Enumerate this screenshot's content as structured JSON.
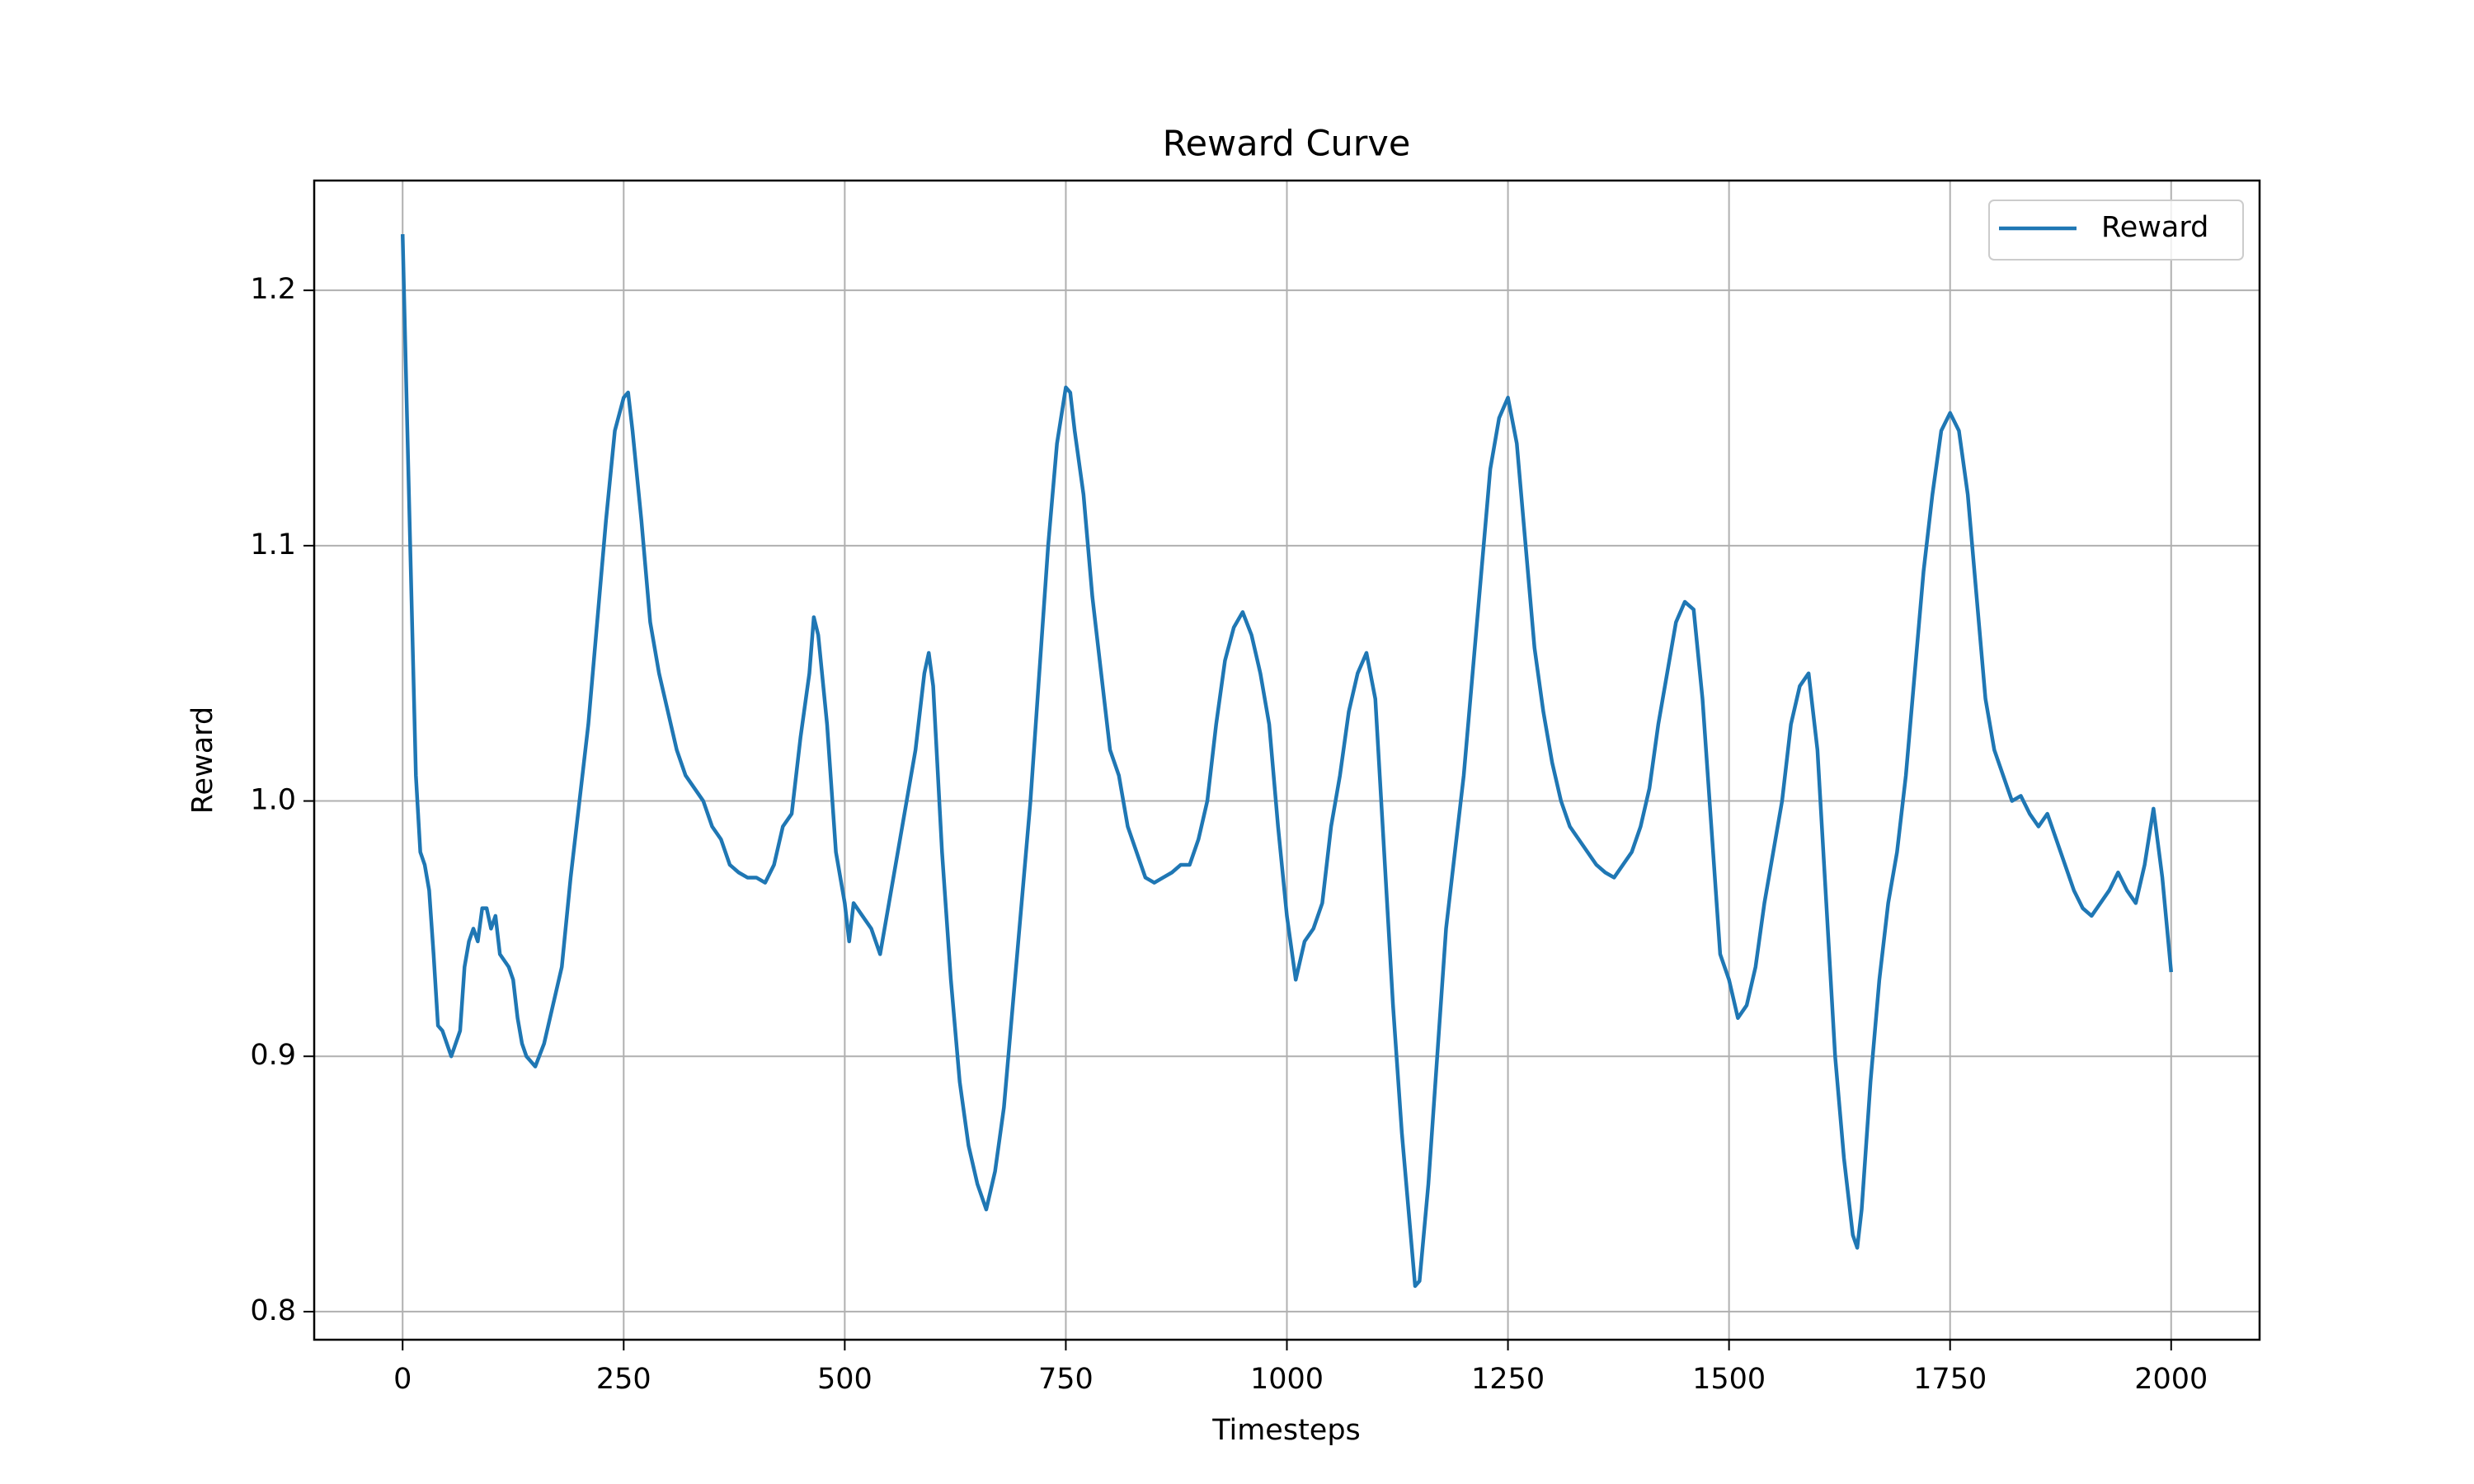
{
  "chart_data": {
    "type": "line",
    "title": "Reward Curve",
    "xlabel": "Timesteps",
    "ylabel": "Reward",
    "x": [
      0,
      5,
      10,
      15,
      20,
      25,
      30,
      35,
      40,
      45,
      50,
      55,
      60,
      65,
      70,
      75,
      80,
      85,
      90,
      95,
      100,
      105,
      110,
      120,
      125,
      130,
      135,
      140,
      145,
      150,
      160,
      170,
      180,
      190,
      200,
      210,
      220,
      230,
      240,
      250,
      255,
      260,
      270,
      280,
      290,
      300,
      310,
      320,
      330,
      340,
      350,
      360,
      370,
      380,
      390,
      400,
      410,
      420,
      430,
      440,
      450,
      460,
      465,
      470,
      480,
      490,
      500,
      505,
      510,
      520,
      530,
      540,
      550,
      560,
      570,
      580,
      590,
      595,
      600,
      610,
      620,
      630,
      640,
      650,
      660,
      670,
      680,
      690,
      700,
      710,
      720,
      730,
      740,
      750,
      755,
      760,
      770,
      780,
      790,
      800,
      810,
      820,
      830,
      840,
      850,
      860,
      870,
      880,
      890,
      900,
      910,
      920,
      930,
      940,
      950,
      960,
      970,
      980,
      990,
      1000,
      1010,
      1020,
      1030,
      1040,
      1050,
      1060,
      1070,
      1080,
      1090,
      1100,
      1110,
      1120,
      1130,
      1140,
      1145,
      1150,
      1160,
      1170,
      1180,
      1190,
      1200,
      1210,
      1220,
      1230,
      1240,
      1250,
      1260,
      1270,
      1280,
      1290,
      1300,
      1310,
      1320,
      1330,
      1340,
      1350,
      1360,
      1370,
      1380,
      1390,
      1400,
      1410,
      1420,
      1430,
      1440,
      1450,
      1460,
      1470,
      1480,
      1490,
      1500,
      1510,
      1520,
      1530,
      1540,
      1550,
      1560,
      1570,
      1580,
      1590,
      1600,
      1610,
      1620,
      1630,
      1640,
      1645,
      1650,
      1660,
      1670,
      1680,
      1690,
      1700,
      1710,
      1720,
      1730,
      1740,
      1750,
      1760,
      1770,
      1780,
      1790,
      1800,
      1810,
      1820,
      1830,
      1840,
      1850,
      1860,
      1870,
      1880,
      1890,
      1900,
      1910,
      1920,
      1930,
      1940,
      1950,
      1960,
      1970,
      1980,
      1990,
      2000
    ],
    "series": [
      {
        "name": "Reward",
        "color": "#1f77b4",
        "values": [
          1.222,
          1.15,
          1.08,
          1.01,
          0.98,
          0.975,
          0.965,
          0.94,
          0.912,
          0.91,
          0.905,
          0.9,
          0.905,
          0.91,
          0.935,
          0.945,
          0.95,
          0.945,
          0.958,
          0.958,
          0.95,
          0.955,
          0.94,
          0.935,
          0.93,
          0.915,
          0.905,
          0.9,
          0.898,
          0.896,
          0.905,
          0.92,
          0.935,
          0.97,
          1.0,
          1.03,
          1.07,
          1.11,
          1.145,
          1.158,
          1.16,
          1.145,
          1.11,
          1.07,
          1.05,
          1.035,
          1.02,
          1.01,
          1.005,
          1.0,
          0.99,
          0.985,
          0.975,
          0.972,
          0.97,
          0.97,
          0.968,
          0.975,
          0.99,
          0.995,
          1.025,
          1.05,
          1.072,
          1.065,
          1.03,
          0.98,
          0.96,
          0.945,
          0.96,
          0.955,
          0.95,
          0.94,
          0.96,
          0.98,
          1.0,
          1.02,
          1.05,
          1.058,
          1.045,
          0.98,
          0.93,
          0.89,
          0.865,
          0.85,
          0.84,
          0.855,
          0.88,
          0.92,
          0.96,
          1.0,
          1.05,
          1.1,
          1.14,
          1.162,
          1.16,
          1.145,
          1.12,
          1.08,
          1.05,
          1.02,
          1.01,
          0.99,
          0.98,
          0.97,
          0.968,
          0.97,
          0.972,
          0.975,
          0.975,
          0.985,
          1.0,
          1.03,
          1.055,
          1.068,
          1.074,
          1.065,
          1.05,
          1.03,
          0.99,
          0.955,
          0.93,
          0.945,
          0.95,
          0.96,
          0.99,
          1.01,
          1.035,
          1.05,
          1.058,
          1.04,
          0.98,
          0.92,
          0.87,
          0.83,
          0.81,
          0.812,
          0.85,
          0.9,
          0.95,
          0.98,
          1.01,
          1.05,
          1.09,
          1.13,
          1.15,
          1.158,
          1.14,
          1.1,
          1.06,
          1.035,
          1.015,
          1.0,
          0.99,
          0.985,
          0.98,
          0.975,
          0.972,
          0.97,
          0.975,
          0.98,
          0.99,
          1.005,
          1.03,
          1.05,
          1.07,
          1.078,
          1.075,
          1.04,
          0.99,
          0.94,
          0.93,
          0.915,
          0.92,
          0.935,
          0.96,
          0.98,
          1.0,
          1.03,
          1.045,
          1.05,
          1.02,
          0.96,
          0.9,
          0.86,
          0.83,
          0.825,
          0.84,
          0.89,
          0.93,
          0.96,
          0.98,
          1.01,
          1.05,
          1.09,
          1.12,
          1.145,
          1.152,
          1.145,
          1.12,
          1.08,
          1.04,
          1.02,
          1.01,
          1.0,
          1.002,
          0.995,
          0.99,
          0.995,
          0.985,
          0.975,
          0.965,
          0.958,
          0.955,
          0.96,
          0.965,
          0.972,
          0.965,
          0.96,
          0.975,
          0.997,
          0.97,
          0.933
        ]
      }
    ],
    "xlim": [
      -100,
      2100
    ],
    "ylim": [
      0.789,
      1.243
    ],
    "xticks": [
      0,
      250,
      500,
      750,
      1000,
      1250,
      1500,
      1750,
      2000
    ],
    "yticks": [
      {
        "value": 0.8,
        "label": "0.8"
      },
      {
        "value": 0.9,
        "label": "0.9"
      },
      {
        "value": 1.0,
        "label": "1.0"
      },
      {
        "value": 1.1,
        "label": "1.1"
      },
      {
        "value": 1.2,
        "label": "1.2"
      }
    ],
    "grid": true,
    "legend": "upper right"
  }
}
